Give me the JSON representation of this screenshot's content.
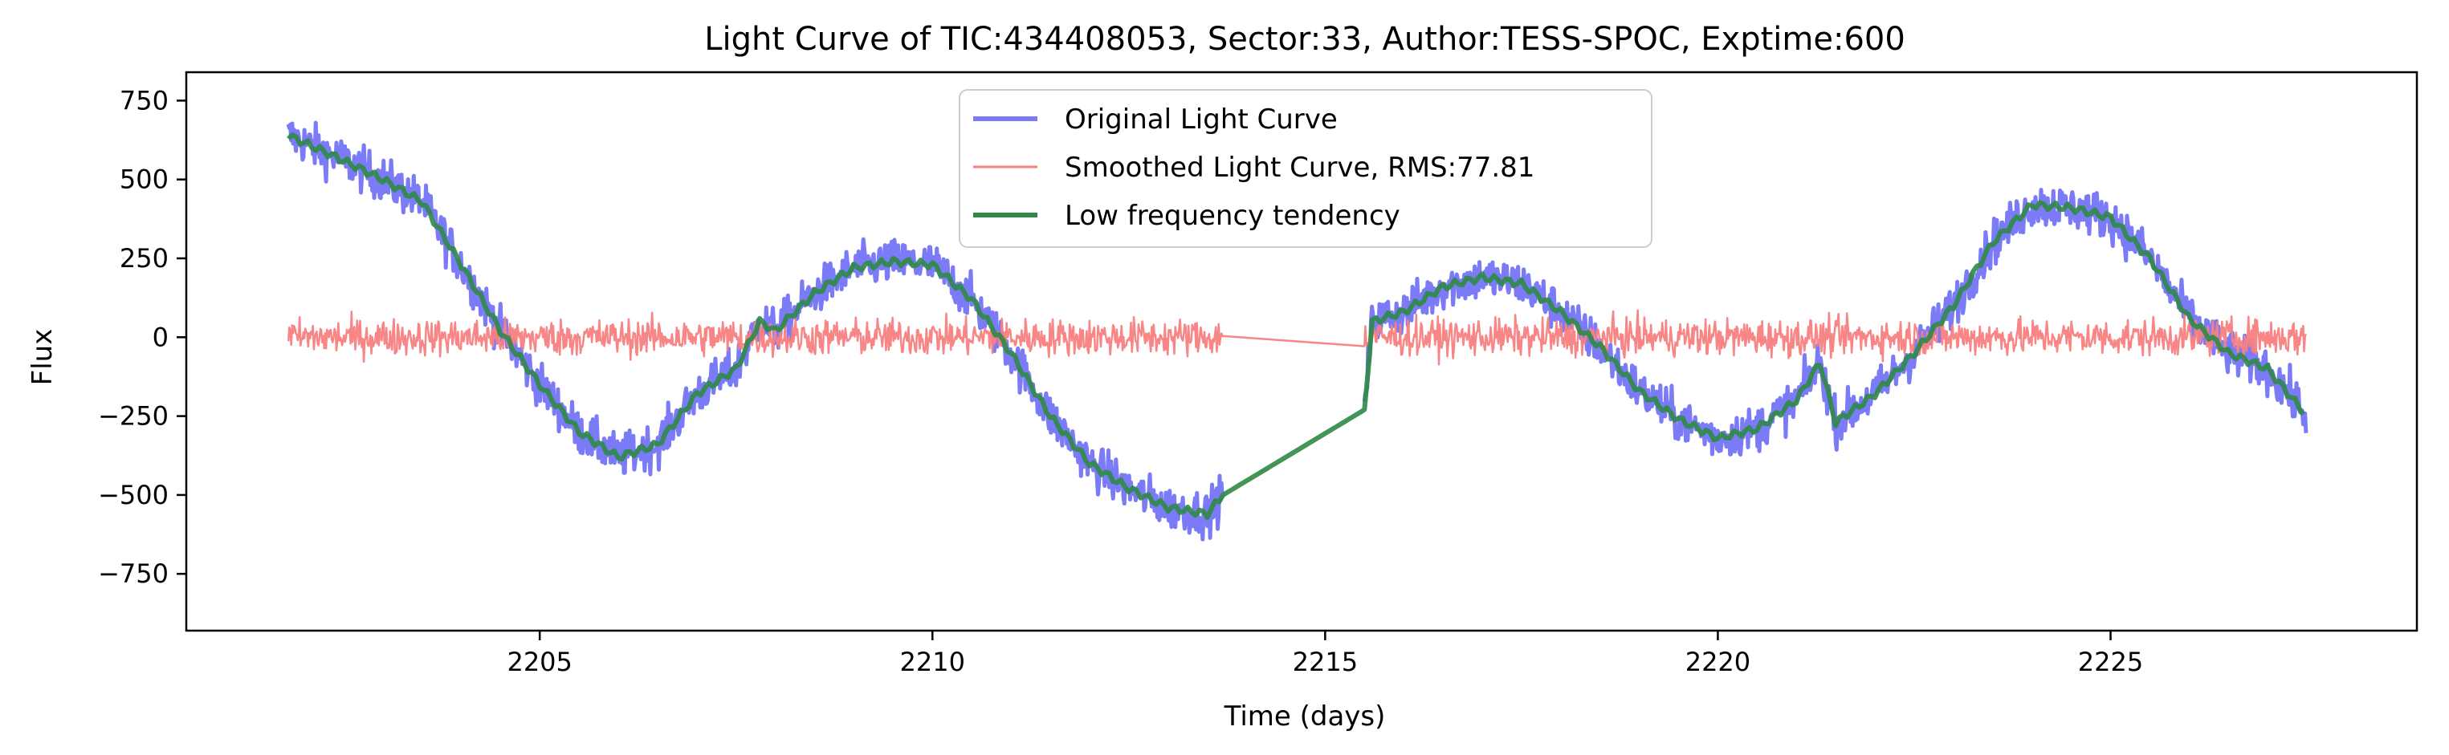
{
  "chart_data": {
    "type": "line",
    "title": "Light Curve of TIC:434408053, Sector:33, Author:TESS-SPOC, Exptime:600",
    "xlabel": "Time (days)",
    "ylabel": "Flux",
    "xlim": [
      2200.5,
      2228.9
    ],
    "ylim": [
      -930,
      840
    ],
    "xticks": [
      2205,
      2210,
      2215,
      2220,
      2225
    ],
    "yticks": [
      750,
      500,
      250,
      0,
      -250,
      -500,
      -750
    ],
    "xtick_labels": [
      "2205",
      "2210",
      "2215",
      "2220",
      "2225"
    ],
    "ytick_labels": [
      "750",
      "500",
      "250",
      "0",
      "−250",
      "−500",
      "−750"
    ],
    "grid": false,
    "legend_position": "top-center",
    "gap": [
      2213.7,
      2215.5
    ],
    "series": [
      {
        "name": "Original Light Curve",
        "color": "#7b7bf7",
        "role": "original",
        "noise": 50
      },
      {
        "name": "Smoothed Light Curve, RMS:77.81",
        "color": "#f87f7f",
        "role": "smoothed",
        "noise": 75
      },
      {
        "name": "Low frequency tendency",
        "color": "#2f8a45",
        "role": "trend",
        "x": [
          2201.8,
          2202.5,
          2203.0,
          2203.5,
          2204.0,
          2204.5,
          2205.0,
          2205.5,
          2206.0,
          2206.5,
          2207.0,
          2207.5,
          2207.8,
          2208.0,
          2208.5,
          2209.0,
          2209.5,
          2210.0,
          2210.5,
          2211.0,
          2211.5,
          2212.0,
          2212.5,
          2213.0,
          2213.5,
          2213.7,
          2215.5,
          2215.6,
          2216.0,
          2216.5,
          2217.0,
          2217.5,
          2218.0,
          2218.5,
          2219.0,
          2219.5,
          2220.0,
          2220.5,
          2221.0,
          2221.3,
          2221.5,
          2222.0,
          2222.5,
          2223.0,
          2223.5,
          2224.0,
          2224.5,
          2225.0,
          2225.5,
          2226.0,
          2226.5,
          2227.0,
          2227.5
        ],
        "y": [
          640,
          560,
          500,
          430,
          230,
          20,
          -150,
          -300,
          -380,
          -340,
          -180,
          -100,
          50,
          20,
          140,
          220,
          240,
          230,
          120,
          -50,
          -250,
          -400,
          -480,
          -540,
          -560,
          -500,
          -230,
          50,
          80,
          160,
          190,
          170,
          80,
          -30,
          -170,
          -260,
          -320,
          -290,
          -200,
          -80,
          -270,
          -180,
          -50,
          100,
          300,
          420,
          410,
          380,
          250,
          60,
          -50,
          -100,
          -250
        ]
      }
    ]
  }
}
